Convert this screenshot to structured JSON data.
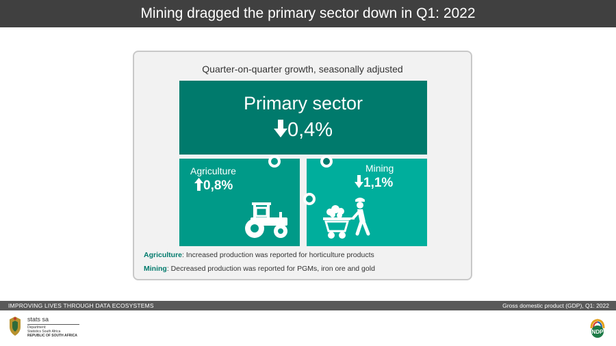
{
  "header": {
    "title": "Mining dragged the primary sector down in Q1: 2022"
  },
  "panel": {
    "subtitle": "Quarter-on-quarter growth, seasonally adjusted",
    "primary": {
      "label": "Primary sector",
      "direction": "down",
      "value": "0,4%",
      "color": "#007a6c"
    },
    "agriculture": {
      "label": "Agriculture",
      "direction": "up",
      "value": "0,8%",
      "icon": "tractor-icon",
      "color": "#009a88"
    },
    "mining": {
      "label": "Mining",
      "direction": "down",
      "value": "1,1%",
      "icon": "miner-icon",
      "color": "#00ae9c"
    },
    "notes": [
      {
        "term": "Agriculture",
        "text": ": Increased production was reported for horticulture products"
      },
      {
        "term": "Mining",
        "text": ": Decreased production was reported for PGMs, iron ore and gold"
      }
    ]
  },
  "footer": {
    "tagline": "IMPROVING LIVES THROUGH DATA ECOSYSTEMS",
    "source": "Gross domestic product (GDP), Q1: 2022"
  },
  "logos": {
    "org_name": "stats sa",
    "department_line1": "Department:",
    "department_line2": "Statistics South Africa",
    "country": "REPUBLIC OF SOUTH AFRICA",
    "ndp": "NDP"
  }
}
